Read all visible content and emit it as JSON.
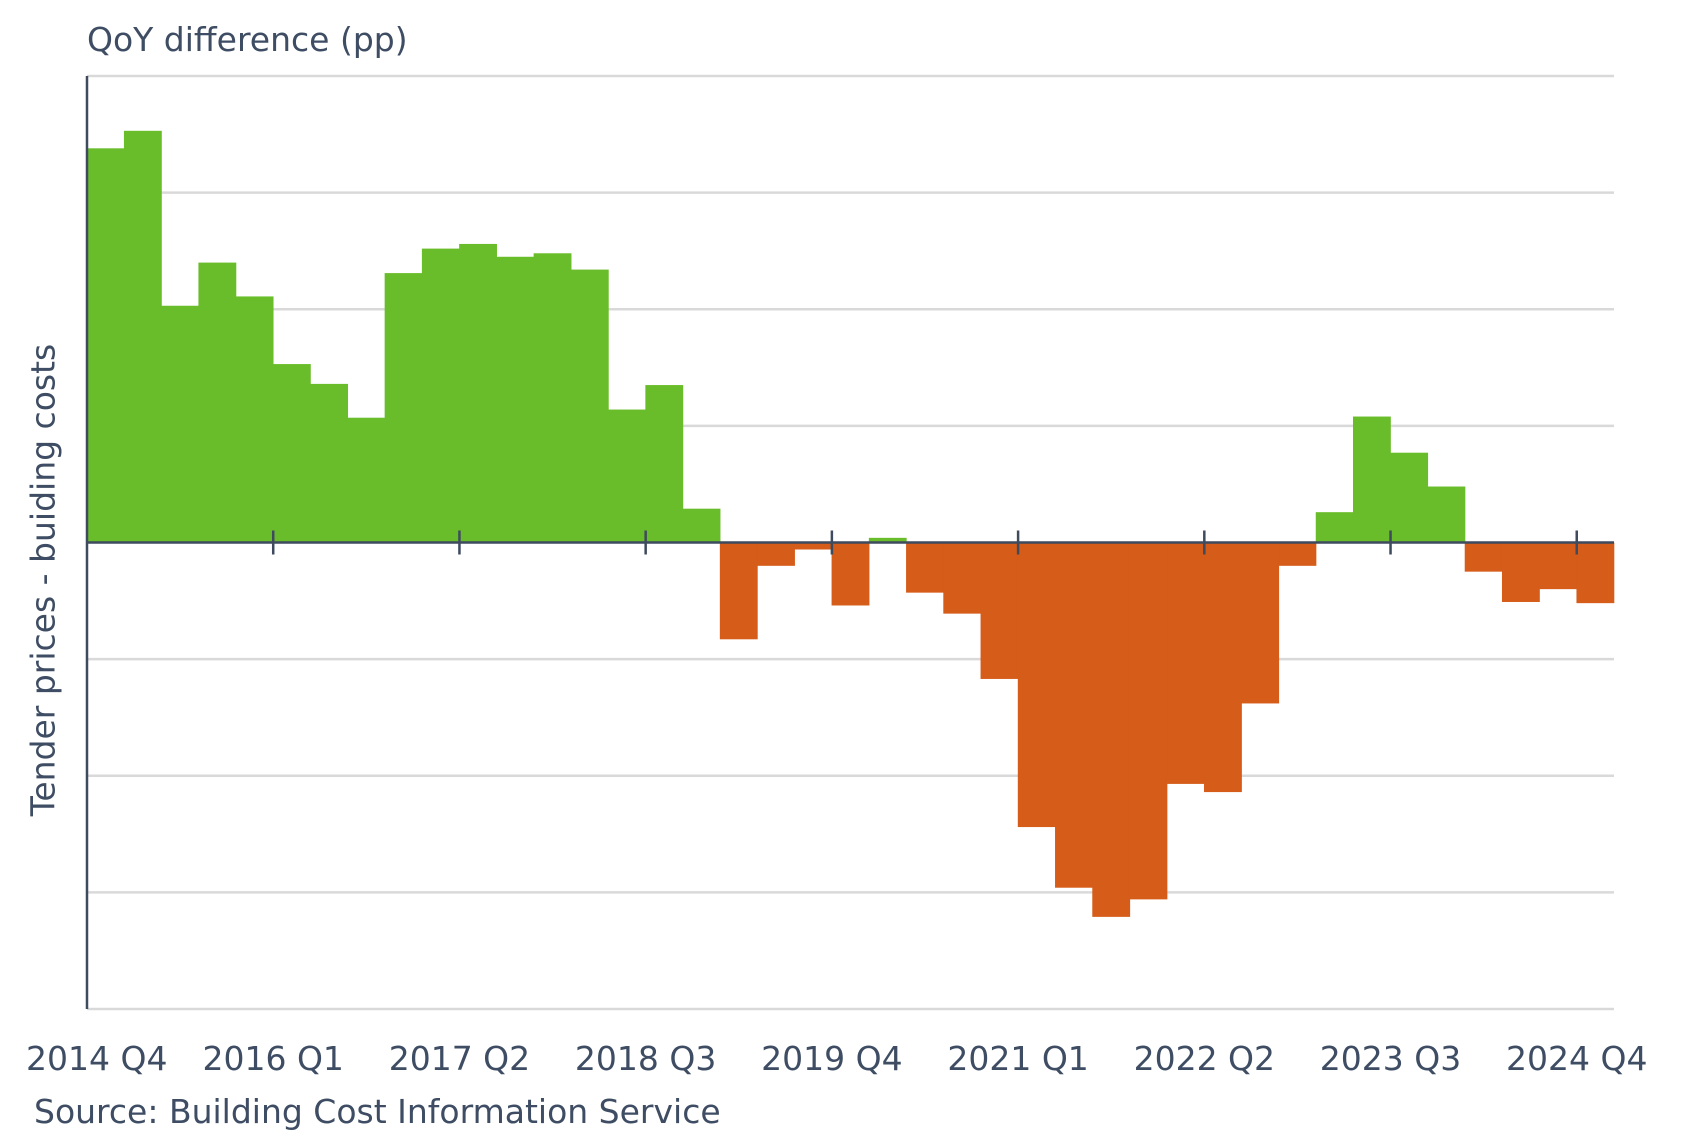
{
  "chart_data": {
    "type": "bar",
    "title": "QoY difference (pp)",
    "ylabel": "Tender prices - buiding costs",
    "xlabel": "",
    "source": "Source: Building Cost Information Service",
    "ylim": [
      -4,
      4
    ],
    "y_tick_labels_shown": false,
    "grid": true,
    "colors": {
      "positive": "#6abd2a",
      "negative": "#d55c19",
      "axis": "#3e4a5e",
      "grid": "#d9d9d9"
    },
    "categories": [
      "2014 Q4",
      "2015 Q1",
      "2015 Q2",
      "2015 Q3",
      "2015 Q4",
      "2016 Q1",
      "2016 Q2",
      "2016 Q3",
      "2016 Q4",
      "2017 Q1",
      "2017 Q2",
      "2017 Q3",
      "2017 Q4",
      "2018 Q1",
      "2018 Q2",
      "2018 Q3",
      "2018 Q4",
      "2019 Q1",
      "2019 Q2",
      "2019 Q3",
      "2019 Q4",
      "2020 Q1",
      "2020 Q2",
      "2020 Q3",
      "2020 Q4",
      "2021 Q1",
      "2021 Q2",
      "2021 Q3",
      "2021 Q4",
      "2022 Q1",
      "2022 Q2",
      "2022 Q3",
      "2022 Q4",
      "2023 Q1",
      "2023 Q2",
      "2023 Q3",
      "2023 Q4",
      "2024 Q1",
      "2024 Q2",
      "2024 Q3",
      "2024 Q4"
    ],
    "values": [
      3.38,
      3.53,
      2.03,
      2.4,
      2.11,
      1.53,
      1.36,
      1.07,
      2.31,
      2.52,
      2.56,
      2.45,
      2.48,
      2.34,
      1.14,
      1.35,
      0.29,
      -0.83,
      -0.2,
      -0.06,
      -0.54,
      0.04,
      -0.43,
      -0.61,
      -1.17,
      -2.44,
      -2.96,
      -3.21,
      -3.06,
      -2.07,
      -2.14,
      -1.38,
      -0.2,
      0.26,
      1.08,
      0.77,
      0.48,
      -0.25,
      -0.51,
      -0.4,
      -0.52
    ],
    "x_tick_labels": [
      "2014 Q4",
      "2016 Q1",
      "2017 Q2",
      "2018 Q3",
      "2019 Q4",
      "2021 Q1",
      "2022 Q2",
      "2023 Q3",
      "2024 Q4"
    ]
  }
}
